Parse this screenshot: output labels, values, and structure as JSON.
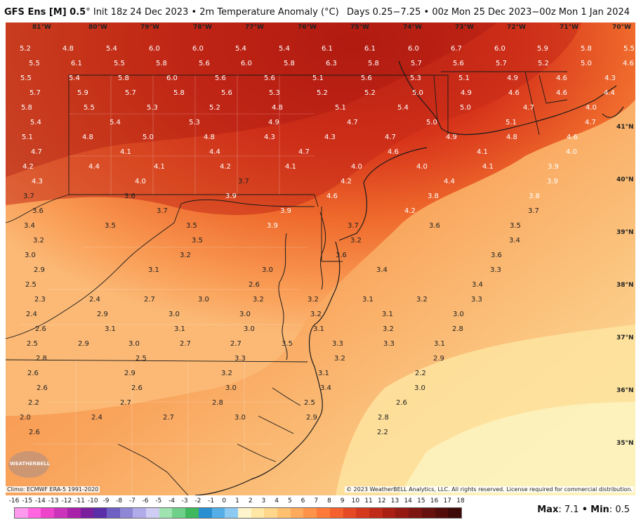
{
  "header": {
    "model": "GFS Ens [M] 0.5",
    "degree_mark": "°",
    "init": "Init 18z 24 Dec 2023",
    "bullet": "•",
    "field": "2m Temperature Anomaly (°C)",
    "valid": "Days 0.25−7.25 • 00z Mon 25 Dec 2023−00z Mon 1 Jan 2024"
  },
  "map": {
    "lon_labels": [
      "81°W",
      "80°W",
      "79°W",
      "78°W",
      "77°W",
      "76°W",
      "75°W",
      "74°W",
      "73°W",
      "72°W",
      "71°W",
      "70°W"
    ],
    "lat_labels": [
      "41°N",
      "40°N",
      "39°N",
      "38°N",
      "37°N",
      "36°N",
      "35°N"
    ],
    "values": [
      "5.2",
      "4.8",
      "5.4",
      "6.0",
      "6.0",
      "5.4",
      "5.4",
      "6.1",
      "6.1",
      "6.0",
      "6.7",
      "6.0",
      "5.9",
      "5.8",
      "5.5",
      "5.5",
      "6.1",
      "5.5",
      "5.8",
      "5.6",
      "6.0",
      "5.8",
      "6.3",
      "5.8",
      "5.7",
      "5.6",
      "5.7",
      "5.2",
      "5.0",
      "4.6",
      "5.5",
      "5.4",
      "5.8",
      "6.0",
      "5.6",
      "5.6",
      "5.1",
      "5.6",
      "5.3",
      "5.1",
      "4.9",
      "4.6",
      "4.3",
      "5.7",
      "5.9",
      "5.7",
      "5.8",
      "5.6",
      "5.3",
      "5.2",
      "5.2",
      "5.0",
      "4.9",
      "4.6",
      "4.6",
      "4.4",
      "5.8",
      "5.5",
      "5.3",
      "5.2",
      "4.8",
      "5.1",
      "5.4",
      "5.0",
      "4.7",
      "4.0",
      "5.4",
      "5.4",
      "5.3",
      "4.9",
      "4.7",
      "5.0",
      "5.1",
      "4.7",
      "5.1",
      "4.8",
      "5.0",
      "4.8",
      "4.3",
      "4.3",
      "4.7",
      "4.9",
      "4.8",
      "4.6",
      "4.7",
      "4.1",
      "4.4",
      "4.7",
      "4.6",
      "4.1",
      "4.0",
      "4.2",
      "4.4",
      "4.1",
      "4.2",
      "4.1",
      "4.0",
      "4.0",
      "4.1",
      "3.9",
      "4.3",
      "4.0",
      "3.7",
      "4.2",
      "4.4",
      "3.9",
      "3.7",
      "3.6",
      "3.9",
      "4.6",
      "3.8",
      "3.8",
      "3.6",
      "3.7",
      "3.9",
      "4.2",
      "3.7",
      "3.4",
      "3.5",
      "3.5",
      "3.9",
      "3.7",
      "3.6",
      "3.5",
      "3.2",
      "3.5",
      "3.2",
      "3.4",
      "3.0",
      "3.2",
      "3.6",
      "3.6",
      "2.9",
      "3.1",
      "3.0",
      "3.4",
      "3.3",
      "2.5",
      "2.6",
      "3.4",
      "2.3",
      "2.4",
      "2.7",
      "3.0",
      "3.2",
      "3.2",
      "3.1",
      "3.2",
      "3.3",
      "2.4",
      "2.9",
      "3.0",
      "3.0",
      "3.2",
      "3.1",
      "3.0",
      "2.6",
      "3.1",
      "3.1",
      "3.0",
      "3.1",
      "3.2",
      "2.8",
      "2.5",
      "2.9",
      "3.0",
      "2.7",
      "2.7",
      "3.5",
      "3.3",
      "3.3",
      "3.1",
      "2.8",
      "2.5",
      "3.3",
      "3.2",
      "2.9",
      "2.6",
      "2.9",
      "3.2",
      "3.1",
      "2.2",
      "2.6",
      "2.6",
      "3.0",
      "3.4",
      "3.0",
      "2.2",
      "2.7",
      "2.8",
      "2.5",
      "2.6",
      "2.0",
      "2.4",
      "2.7",
      "3.0",
      "2.9",
      "2.8",
      "2.6",
      "2.2"
    ]
  },
  "footer": {
    "climo": "Climo: ECMWF ERA-5 1991-2020",
    "copyright": "© 2023 WeatherBELL Analytics, LLC. All rights reserved. License required for commercial distribution.",
    "logo_text": "WEATHERBELL"
  },
  "colorbar": {
    "ticks": [
      "-16",
      "-15",
      "-14",
      "-13",
      "-12",
      "-11",
      "-10",
      "-9",
      "-8",
      "-7",
      "-6",
      "-5",
      "-4",
      "-3",
      "-2",
      "-1",
      "0",
      "1",
      "2",
      "3",
      "4",
      "5",
      "6",
      "7",
      "8",
      "9",
      "10",
      "11",
      "12",
      "13",
      "14",
      "15",
      "16",
      "17",
      "18"
    ],
    "colors": [
      "#ff99ee",
      "#ff66e0",
      "#ee44cc",
      "#cc33bb",
      "#aa22aa",
      "#7a1f9e",
      "#5a2fa8",
      "#6e5fc2",
      "#8e87d6",
      "#b0acea",
      "#cfcdf3",
      "#9fe3b0",
      "#6fd08a",
      "#3fb85e",
      "#2a8fd0",
      "#55aee6",
      "#8ccaf2",
      "#fff5cc",
      "#ffe7a6",
      "#ffd68a",
      "#ffc070",
      "#ffaa5c",
      "#ff934a",
      "#ff7a3a",
      "#f4602e",
      "#e64a24",
      "#d4381d",
      "#c02a18",
      "#aa1f14",
      "#941a12",
      "#7d1510",
      "#66110e",
      "#520d0b",
      "#3e0a08"
    ],
    "max_label": "Max",
    "max_value": "7.1",
    "min_label": "Min",
    "min_value": "0.5",
    "sep": "•"
  }
}
